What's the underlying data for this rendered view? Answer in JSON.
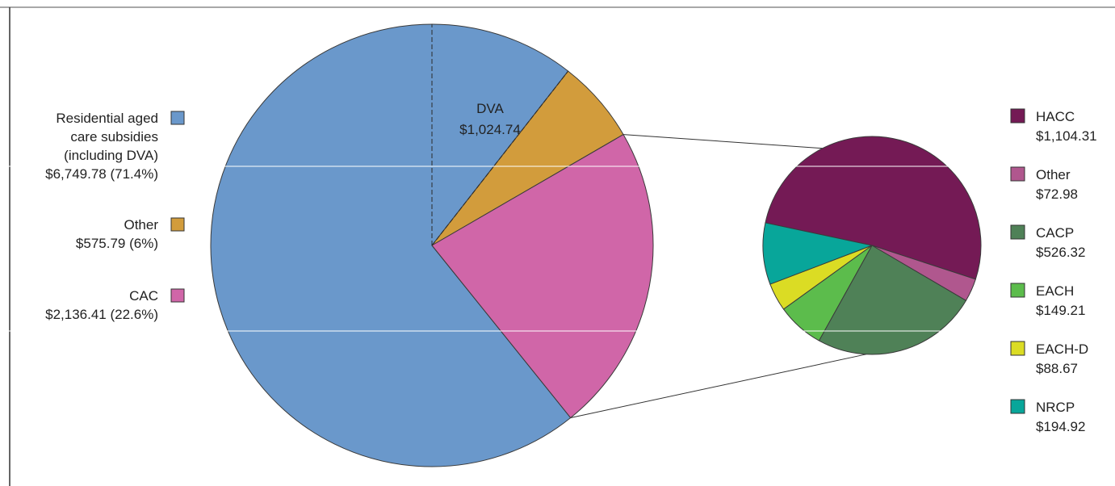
{
  "chart_data": {
    "type": "pie",
    "main": {
      "slices": [
        {
          "name": "Residential aged care subsidies (including DVA)",
          "label_lines": [
            "Residential aged",
            "care subsidies",
            "(including DVA)"
          ],
          "value_label": "$6,749.78 (71.4%)",
          "value": 6749.78,
          "percent": 71.4,
          "color": "#6a98cb"
        },
        {
          "name": "Other",
          "label_lines": [
            "Other"
          ],
          "value_label": "$575.79 (6%)",
          "value": 575.79,
          "percent": 6,
          "color": "#d29c3c"
        },
        {
          "name": "CAC",
          "label_lines": [
            "CAC"
          ],
          "value_label": "$2,136.41 (22.6%)",
          "value": 2136.41,
          "percent": 22.6,
          "color": "#d066a8"
        }
      ],
      "sub_segment": {
        "name": "DVA",
        "value": 1024.74,
        "value_label": "$1,024.74",
        "parent": "Residential aged care subsidies (including DVA)"
      }
    },
    "breakout": {
      "parent": "CAC",
      "slices": [
        {
          "name": "HACC",
          "value": 1104.31,
          "value_label": "$1,104.31",
          "color": "#741a55"
        },
        {
          "name": "Other",
          "value": 72.98,
          "value_label": "$72.98",
          "color": "#b0578e"
        },
        {
          "name": "CACP",
          "value": 526.32,
          "value_label": "$526.32",
          "color": "#4f8157"
        },
        {
          "name": "EACH",
          "value": 149.21,
          "value_label": "$149.21",
          "color": "#5cbc4c"
        },
        {
          "name": "EACH-D",
          "value": 88.67,
          "value_label": "$88.67",
          "color": "#dbdc24"
        },
        {
          "name": "NRCP",
          "value": 194.92,
          "value_label": "$194.92",
          "color": "#08a69a"
        }
      ]
    }
  }
}
